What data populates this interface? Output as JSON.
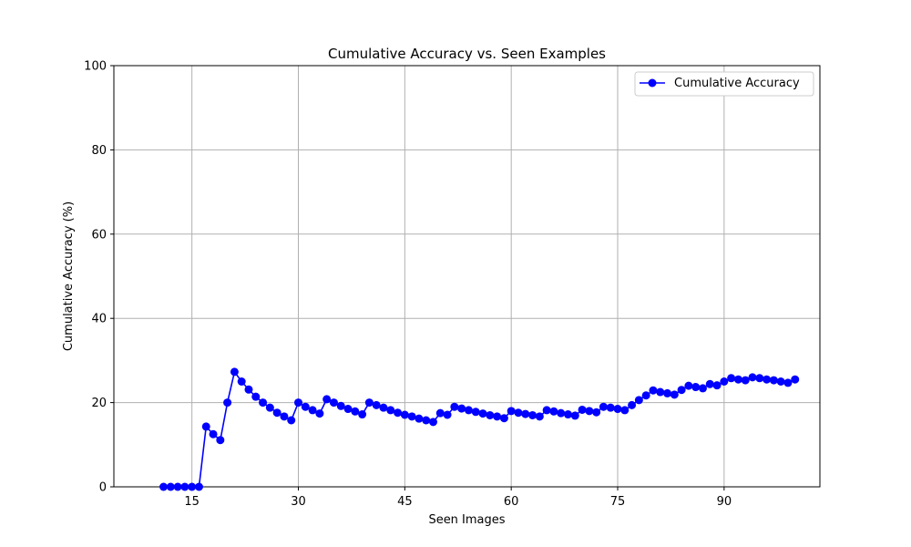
{
  "chart_data": {
    "type": "line",
    "title": "Cumulative Accuracy vs. Seen Examples",
    "xlabel": "Seen Images",
    "ylabel": "Cumulative Accuracy (%)",
    "xlim": [
      4,
      103.5
    ],
    "ylim": [
      0,
      100
    ],
    "xticks": [
      15,
      30,
      45,
      60,
      75,
      90
    ],
    "yticks": [
      0,
      20,
      40,
      60,
      80,
      100
    ],
    "grid": true,
    "legend_position": "top-right",
    "series": [
      {
        "name": "Cumulative Accuracy",
        "color": "#0000ff",
        "marker": "circle",
        "x": [
          11,
          12,
          13,
          14,
          15,
          16,
          17,
          18,
          19,
          20,
          21,
          22,
          23,
          24,
          25,
          26,
          27,
          28,
          29,
          30,
          31,
          32,
          33,
          34,
          35,
          36,
          37,
          38,
          39,
          40,
          41,
          42,
          43,
          44,
          45,
          46,
          47,
          48,
          49,
          50,
          51,
          52,
          53,
          54,
          55,
          56,
          57,
          58,
          59,
          60,
          61,
          62,
          63,
          64,
          65,
          66,
          67,
          68,
          69,
          70,
          71,
          72,
          73,
          74,
          75,
          76,
          77,
          78,
          79,
          80,
          81,
          82,
          83,
          84,
          85,
          86,
          87,
          88,
          89,
          90,
          91,
          92,
          93,
          94,
          95,
          96,
          97,
          98,
          99,
          100
        ],
        "values": [
          0,
          0,
          0,
          0,
          0,
          0,
          14.3,
          12.5,
          11.1,
          20.0,
          27.3,
          25.0,
          23.1,
          21.4,
          20.0,
          18.8,
          17.6,
          16.7,
          15.8,
          20.0,
          19.0,
          18.2,
          17.4,
          20.8,
          20.0,
          19.2,
          18.5,
          17.9,
          17.2,
          20.0,
          19.4,
          18.8,
          18.2,
          17.6,
          17.1,
          16.7,
          16.2,
          15.8,
          15.4,
          17.5,
          17.1,
          19.0,
          18.6,
          18.2,
          17.8,
          17.4,
          17.0,
          16.7,
          16.3,
          18.0,
          17.6,
          17.3,
          17.0,
          16.7,
          18.2,
          17.9,
          17.5,
          17.2,
          16.9,
          18.3,
          18.0,
          17.7,
          19.0,
          18.8,
          18.5,
          18.2,
          19.4,
          20.6,
          21.7,
          22.9,
          22.5,
          22.2,
          21.9,
          23.0,
          24.0,
          23.7,
          23.4,
          24.4,
          24.1,
          25.0,
          25.8,
          25.5,
          25.3,
          26.0,
          25.8,
          25.5,
          25.3,
          25.0,
          24.7,
          25.5
        ]
      }
    ]
  }
}
